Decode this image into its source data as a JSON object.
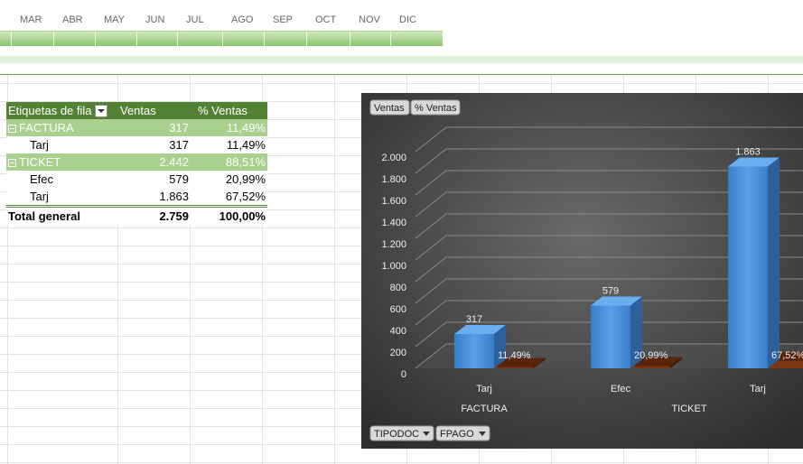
{
  "months": [
    "MAR",
    "ABR",
    "MAY",
    "JUN",
    "JUL",
    "AGO",
    "SEP",
    "OCT",
    "NOV",
    "DIC"
  ],
  "table": {
    "header": [
      "Etiquetas de fila",
      "Ventas",
      "% Ventas"
    ],
    "rows": [
      [
        "FACTURA",
        "317",
        "11,49%"
      ],
      [
        "Tarj",
        "317",
        "11,49%"
      ],
      [
        "TICKET",
        "2.442",
        "88,51%"
      ],
      [
        "Efec",
        "579",
        "20,99%"
      ],
      [
        "Tarj",
        "1.863",
        "67,52%"
      ]
    ],
    "total": [
      "Total general",
      "2.759",
      "100,00%"
    ]
  },
  "chart_data": {
    "type": "bar",
    "categories": [
      "Tarj",
      "Efec",
      "Tarj"
    ],
    "groups": [
      {
        "label": "FACTURA",
        "span": 1
      },
      {
        "label": "TICKET",
        "span": 2
      }
    ],
    "axis_fields": [
      "TIPODOC",
      "FPAGO"
    ],
    "series": [
      {
        "name": "Ventas",
        "color": "#4a90d9",
        "values": [
          317,
          579,
          1863
        ],
        "value_labels": [
          "317",
          "579",
          "1.863"
        ]
      },
      {
        "name": "% Ventas",
        "color": "#7a3512",
        "values": [
          11.49,
          20.99,
          67.52
        ],
        "value_labels": [
          "11,49%",
          "20,99%",
          "67,52%"
        ]
      }
    ],
    "ylim": [
      0,
      2000
    ],
    "yticks": [
      0,
      200,
      400,
      600,
      800,
      {
        "value": 1000,
        "label": "1.000"
      },
      {
        "value": 1200,
        "label": "1.200"
      },
      {
        "value": 1400,
        "label": "1.400"
      },
      {
        "value": 1600,
        "label": "1.600"
      },
      {
        "value": 1800,
        "label": "1.800"
      },
      {
        "value": 2000,
        "label": "2.000"
      }
    ],
    "grid": true
  }
}
